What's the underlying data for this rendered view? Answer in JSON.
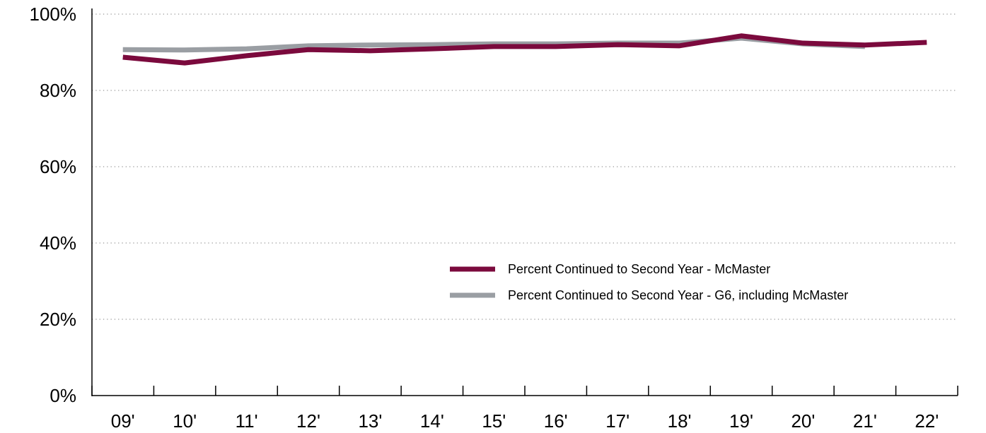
{
  "chart_data": {
    "type": "line",
    "categories": [
      "09'",
      "10'",
      "11'",
      "12'",
      "13'",
      "14'",
      "15'",
      "16'",
      "17'",
      "18'",
      "19'",
      "20'",
      "21'",
      "22'"
    ],
    "series": [
      {
        "name": "Percent Continued to Second Year - McMaster",
        "color": "#7b0a3d",
        "values": [
          88.7,
          87.2,
          89.1,
          90.7,
          90.4,
          90.9,
          91.5,
          91.5,
          92.0,
          91.7,
          94.3,
          92.4,
          91.9,
          92.6
        ]
      },
      {
        "name": "Percent Continued to Second Year - G6, including McMaster",
        "color": "#9a9ea3",
        "values": [
          90.7,
          90.6,
          90.9,
          91.7,
          91.9,
          92.0,
          92.2,
          92.2,
          92.4,
          92.4,
          93.7,
          92.2,
          91.5,
          null
        ]
      }
    ],
    "ylim": [
      0,
      100
    ],
    "yticks": [
      {
        "value": 0,
        "label": "0%"
      },
      {
        "value": 20,
        "label": "20%"
      },
      {
        "value": 40,
        "label": "40%"
      },
      {
        "value": 60,
        "label": "60%"
      },
      {
        "value": 80,
        "label": "80%"
      },
      {
        "value": 100,
        "label": "100%"
      }
    ],
    "grid": true,
    "legend": "right"
  }
}
